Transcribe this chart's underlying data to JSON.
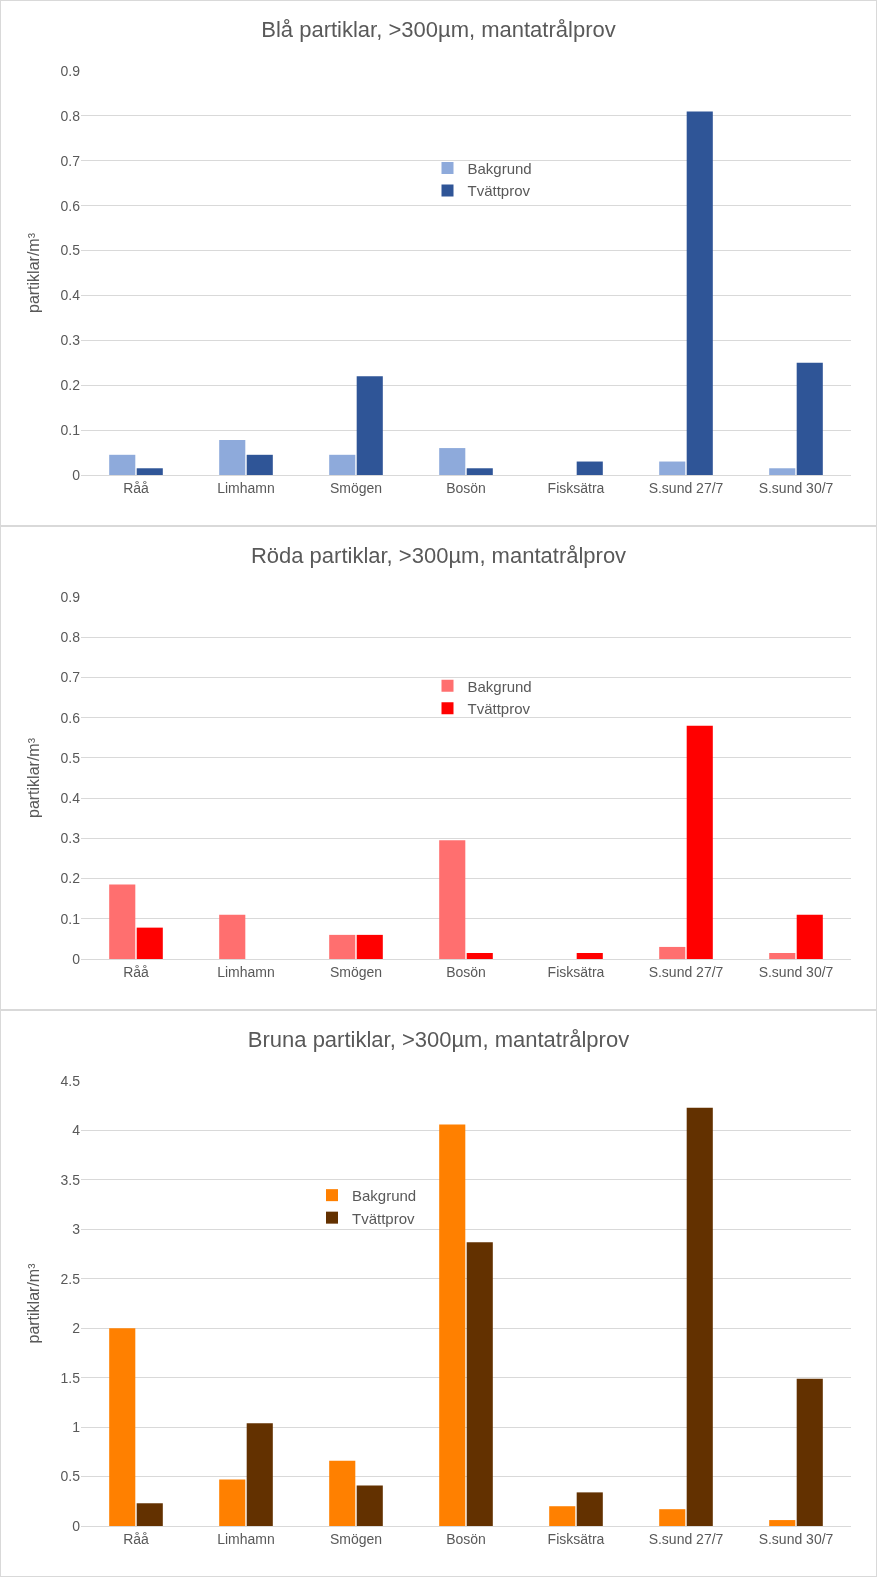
{
  "chart_data": [
    {
      "type": "bar",
      "title": "Blå partiklar, >300µm, mantatrålprov",
      "ylabel": "partiklar/m³",
      "categories": [
        "Råå",
        "Limhamn",
        "Smögen",
        "Bosön",
        "Fisksätra",
        "S.sund 27/7",
        "S.sund 30/7"
      ],
      "series": [
        {
          "name": "Bakgrund",
          "color": "#8eaadb",
          "values": [
            0.045,
            0.078,
            0.045,
            0.06,
            0,
            0.03,
            0.015
          ]
        },
        {
          "name": "Tvättprov",
          "color": "#2f5597",
          "values": [
            0.015,
            0.045,
            0.22,
            0.015,
            0.03,
            0.81,
            0.25
          ]
        }
      ],
      "ylim": [
        0,
        0.9
      ],
      "yticks": [
        0,
        0.1,
        0.2,
        0.3,
        0.4,
        0.5,
        0.6,
        0.7,
        0.8,
        0.9
      ],
      "grid": "y",
      "legend": "top"
    },
    {
      "type": "bar",
      "title": "Röda partiklar, >300µm, mantatrålprov",
      "ylabel": "partiklar/m³",
      "categories": [
        "Råå",
        "Limhamn",
        "Smögen",
        "Bosön",
        "Fisksätra",
        "S.sund 27/7",
        "S.sund 30/7"
      ],
      "series": [
        {
          "name": "Bakgrund",
          "color": "#ff6f6f",
          "values": [
            0.185,
            0.11,
            0.06,
            0.295,
            0,
            0.03,
            0.015
          ]
        },
        {
          "name": "Tvättprov",
          "color": "#ff0000",
          "values": [
            0.078,
            0,
            0.06,
            0.015,
            0.015,
            0.58,
            0.11
          ]
        }
      ],
      "ylim": [
        0,
        0.9
      ],
      "yticks": [
        0,
        0.1,
        0.2,
        0.3,
        0.4,
        0.5,
        0.6,
        0.7,
        0.8,
        0.9
      ],
      "grid": "y",
      "legend": "top"
    },
    {
      "type": "bar",
      "title": "Bruna partiklar, >300µm, mantatrålprov",
      "ylabel": "partiklar/m³",
      "categories": [
        "Råå",
        "Limhamn",
        "Smögen",
        "Bosön",
        "Fisksätra",
        "S.sund 27/7",
        "S.sund 30/7"
      ],
      "series": [
        {
          "name": "Bakgrund",
          "color": "#ff8000",
          "values": [
            2.0,
            0.47,
            0.66,
            4.06,
            0.2,
            0.17,
            0.06
          ]
        },
        {
          "name": "Tvättprov",
          "color": "#633100",
          "values": [
            0.23,
            1.04,
            0.41,
            2.87,
            0.34,
            4.23,
            1.49
          ]
        }
      ],
      "ylim": [
        0,
        4.5
      ],
      "yticks": [
        0,
        0.5,
        1,
        1.5,
        2,
        2.5,
        3,
        3.5,
        4,
        4.5
      ],
      "grid": "y",
      "legend": "top left"
    }
  ]
}
